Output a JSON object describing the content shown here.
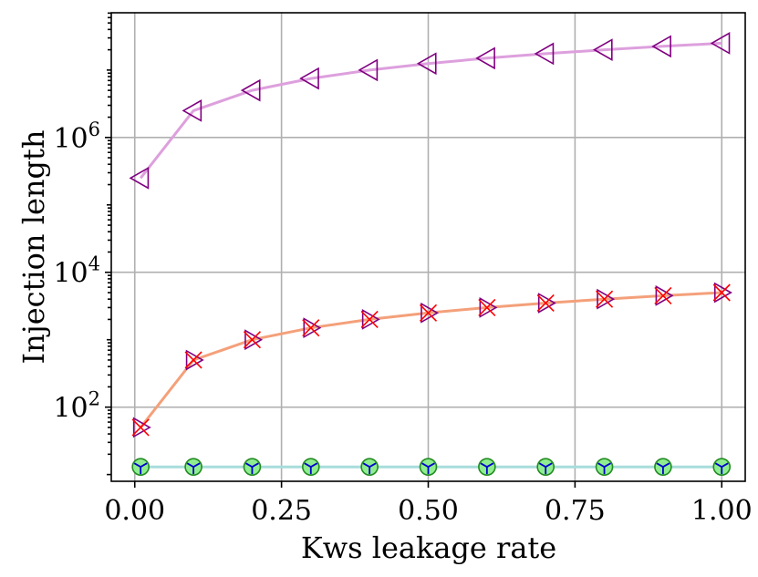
{
  "chart_data": {
    "type": "line",
    "title": "",
    "xlabel": "Kws leakage rate",
    "ylabel": "Injection length",
    "xscale": "linear",
    "yscale": "log",
    "xlim": [
      -0.04,
      1.04
    ],
    "ylim_log10": [
      0.9,
      7.85
    ],
    "x_ticks": [
      0.0,
      0.25,
      0.5,
      0.75,
      1.0
    ],
    "x_tick_labels": [
      "0.00",
      "0.25",
      "0.50",
      "0.75",
      "1.00"
    ],
    "y_ticks": [
      {
        "value": 100,
        "base": "10",
        "exp": "2"
      },
      {
        "value": 10000,
        "base": "10",
        "exp": "4"
      },
      {
        "value": 1000000,
        "base": "10",
        "exp": "6"
      }
    ],
    "grid": true,
    "legend": "none",
    "series": [
      {
        "name": "top-triangles",
        "x": [
          0.01,
          0.1,
          0.2,
          0.3,
          0.4,
          0.5,
          0.6,
          0.7,
          0.8,
          0.9,
          1.0
        ],
        "values": [
          250000,
          2500000,
          5000000,
          7500000,
          10000000,
          12500000,
          15000000,
          17500000,
          20000000,
          22500000,
          25000000
        ],
        "line_color": "#dda0dd",
        "marker": "triangle-left",
        "marker_edge": "#800080"
      },
      {
        "name": "middle-crosses",
        "x": [
          0.01,
          0.1,
          0.2,
          0.3,
          0.4,
          0.5,
          0.6,
          0.7,
          0.8,
          0.9,
          1.0
        ],
        "values": [
          50,
          500,
          1000,
          1500,
          2000,
          2500,
          3000,
          3500,
          4000,
          4500,
          5000
        ],
        "line_color": "#f4a07a",
        "marker": "x-and-triangle-right",
        "marker_edge": "#800080",
        "marker_cross": "#ff0000"
      },
      {
        "name": "bottom-circles",
        "x": [
          0.01,
          0.1,
          0.2,
          0.3,
          0.4,
          0.5,
          0.6,
          0.7,
          0.8,
          0.9,
          1.0
        ],
        "values": [
          13,
          13,
          13,
          13,
          13,
          13,
          13,
          13,
          13,
          13,
          13
        ],
        "line_color": "#a8dcdc",
        "marker": "circle-tri-down",
        "marker_fill": "#90ee90",
        "marker_edge": "#228b22",
        "marker_inner": "#0000cd"
      }
    ]
  }
}
